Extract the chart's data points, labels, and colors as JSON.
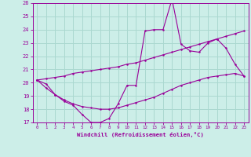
{
  "xlabel": "Windchill (Refroidissement éolien,°C)",
  "bg_color": "#cceee8",
  "grid_color": "#aad8d0",
  "line_color": "#990099",
  "x": [
    0,
    1,
    2,
    3,
    4,
    5,
    6,
    7,
    8,
    9,
    10,
    11,
    12,
    13,
    14,
    15,
    16,
    17,
    18,
    19,
    20,
    21,
    22,
    23
  ],
  "y_main": [
    20.2,
    19.9,
    19.1,
    18.6,
    18.3,
    17.6,
    17.0,
    17.0,
    17.3,
    18.4,
    19.8,
    19.8,
    23.9,
    24.0,
    24.0,
    26.3,
    22.9,
    22.4,
    22.3,
    23.0,
    23.3,
    22.6,
    21.4,
    20.5
  ],
  "y_high": [
    20.2,
    20.3,
    20.4,
    20.5,
    20.7,
    20.8,
    20.9,
    21.0,
    21.1,
    21.2,
    21.4,
    21.5,
    21.7,
    21.9,
    22.1,
    22.3,
    22.5,
    22.7,
    22.9,
    23.1,
    23.3,
    23.5,
    23.7,
    23.9
  ],
  "y_low": [
    20.2,
    19.6,
    19.1,
    18.7,
    18.4,
    18.2,
    18.1,
    18.0,
    18.0,
    18.1,
    18.3,
    18.5,
    18.7,
    18.9,
    19.2,
    19.5,
    19.8,
    20.0,
    20.2,
    20.4,
    20.5,
    20.6,
    20.7,
    20.5
  ],
  "ylim": [
    17,
    26
  ],
  "xlim": [
    -0.5,
    23.5
  ],
  "yticks": [
    17,
    18,
    19,
    20,
    21,
    22,
    23,
    24,
    25,
    26
  ],
  "xticks": [
    0,
    1,
    2,
    3,
    4,
    5,
    6,
    7,
    8,
    9,
    10,
    11,
    12,
    13,
    14,
    15,
    16,
    17,
    18,
    19,
    20,
    21,
    22,
    23
  ]
}
